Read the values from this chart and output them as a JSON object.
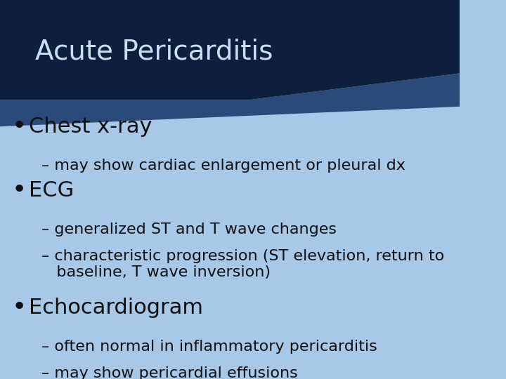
{
  "title": "Acute Pericarditis",
  "title_color": "#c8dff0",
  "title_bg_dark": "#0d1f3c",
  "title_bg_medium": "#2a4a7a",
  "body_bg_color": "#a8c8e8",
  "body_text_color": "#111111",
  "title_font_size": 28,
  "bullet_font_size": 22,
  "sub_font_size": 16,
  "fig_width": 7.2,
  "fig_height": 5.4,
  "dpi": 100,
  "bullet_items": [
    {
      "bullet": "Chest x-ray",
      "sub_items": [
        "– may show cardiac enlargement or pleural dx"
      ]
    },
    {
      "bullet": "ECG",
      "sub_items": [
        "– generalized ST and T wave changes",
        "– characteristic progression (ST elevation, return to\n   baseline, T wave inversion)"
      ]
    },
    {
      "bullet": "Echocardiogram",
      "sub_items": [
        "– often normal in inflammatory pericarditis",
        "– may show pericardial effusions"
      ]
    }
  ]
}
